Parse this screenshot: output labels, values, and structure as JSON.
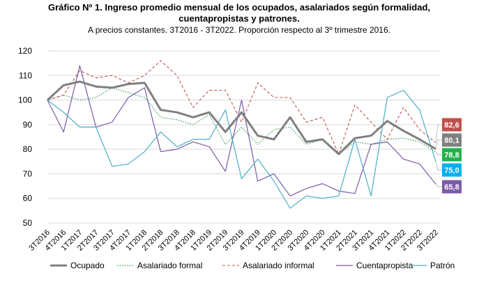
{
  "chart_data": {
    "type": "line",
    "title_line1": "Gráfico Nº 1. Ingreso promedio mensual de los ocupados, asalariados según formalidad,",
    "title_line2": "cuentapropistas y patrones.",
    "subtitle": "A precios constantes. 3T2016 - 3T2022. Proporción respecto al 3º trimestre 2016.",
    "xlabel": "",
    "ylabel": "",
    "ylim": [
      50,
      120
    ],
    "yticks": [
      "50",
      "60",
      "70",
      "80",
      "90",
      "100",
      "110",
      "120"
    ],
    "grid": "horizontal",
    "legend_position": "bottom",
    "categories": [
      "3T2016",
      "4T2016",
      "1T2017",
      "2T2017",
      "3T2017",
      "4T2017",
      "1T2018",
      "2T2018",
      "3T2018",
      "4T2018",
      "1T2019",
      "2T2019",
      "3T2019",
      "4T2019",
      "1T2020",
      "2T2020",
      "3T2020",
      "4T2020",
      "1T2021",
      "2T2021",
      "3T2021",
      "4T2021",
      "1T2022",
      "2T2022",
      "3T2022"
    ],
    "series": [
      {
        "name": "Ocupado",
        "color": "#7f7f7f",
        "style": "solid-thick",
        "values": [
          100,
          106,
          107.5,
          105.5,
          105,
          106.5,
          107,
          96,
          95,
          93,
          95,
          87,
          95,
          85.5,
          84,
          93,
          83,
          84,
          78,
          84.5,
          85.5,
          91.5,
          87.5,
          84,
          80.1
        ],
        "end_label": "80,1"
      },
      {
        "name": "Asalariado formal",
        "color": "#2e9d4f",
        "style": "dotted",
        "values": [
          100,
          102,
          100,
          101,
          105,
          103,
          101,
          93,
          92,
          90,
          94,
          82,
          89,
          82,
          88,
          89,
          82,
          84,
          78,
          83,
          82,
          84,
          84.5,
          83,
          78.8
        ],
        "end_label": "78,8"
      },
      {
        "name": "Asalariado informal",
        "color": "#c0504d",
        "style": "dashed",
        "values": [
          100,
          102,
          112,
          109,
          110,
          107,
          110,
          116,
          110,
          97,
          104,
          104,
          91,
          107,
          101,
          101,
          91,
          93,
          78,
          98,
          91,
          84,
          97,
          88,
          82.6
        ],
        "end_label": "82,6"
      },
      {
        "name": "Cuentapropista",
        "color": "#7b5aa6",
        "style": "solid",
        "values": [
          100,
          87,
          114,
          89,
          91,
          101,
          105,
          79,
          80,
          83,
          81,
          71,
          100,
          67,
          70,
          61,
          64,
          66,
          63,
          62,
          82,
          83,
          76,
          74,
          65.8
        ],
        "end_label": "65,8"
      },
      {
        "name": "Patrón",
        "color": "#4bacc6",
        "style": "solid",
        "values": [
          100,
          95,
          89,
          89,
          73,
          74,
          79,
          87,
          81,
          84,
          84,
          96,
          68,
          76,
          67,
          56,
          61,
          60,
          61,
          84,
          61,
          101,
          104,
          96,
          75
        ],
        "end_label": "75,0"
      }
    ],
    "end_label_colors": [
      "#c0504d",
      "#7f7f7f",
      "#22b14c",
      "#00b0f0",
      "#7b5aa6"
    ]
  }
}
